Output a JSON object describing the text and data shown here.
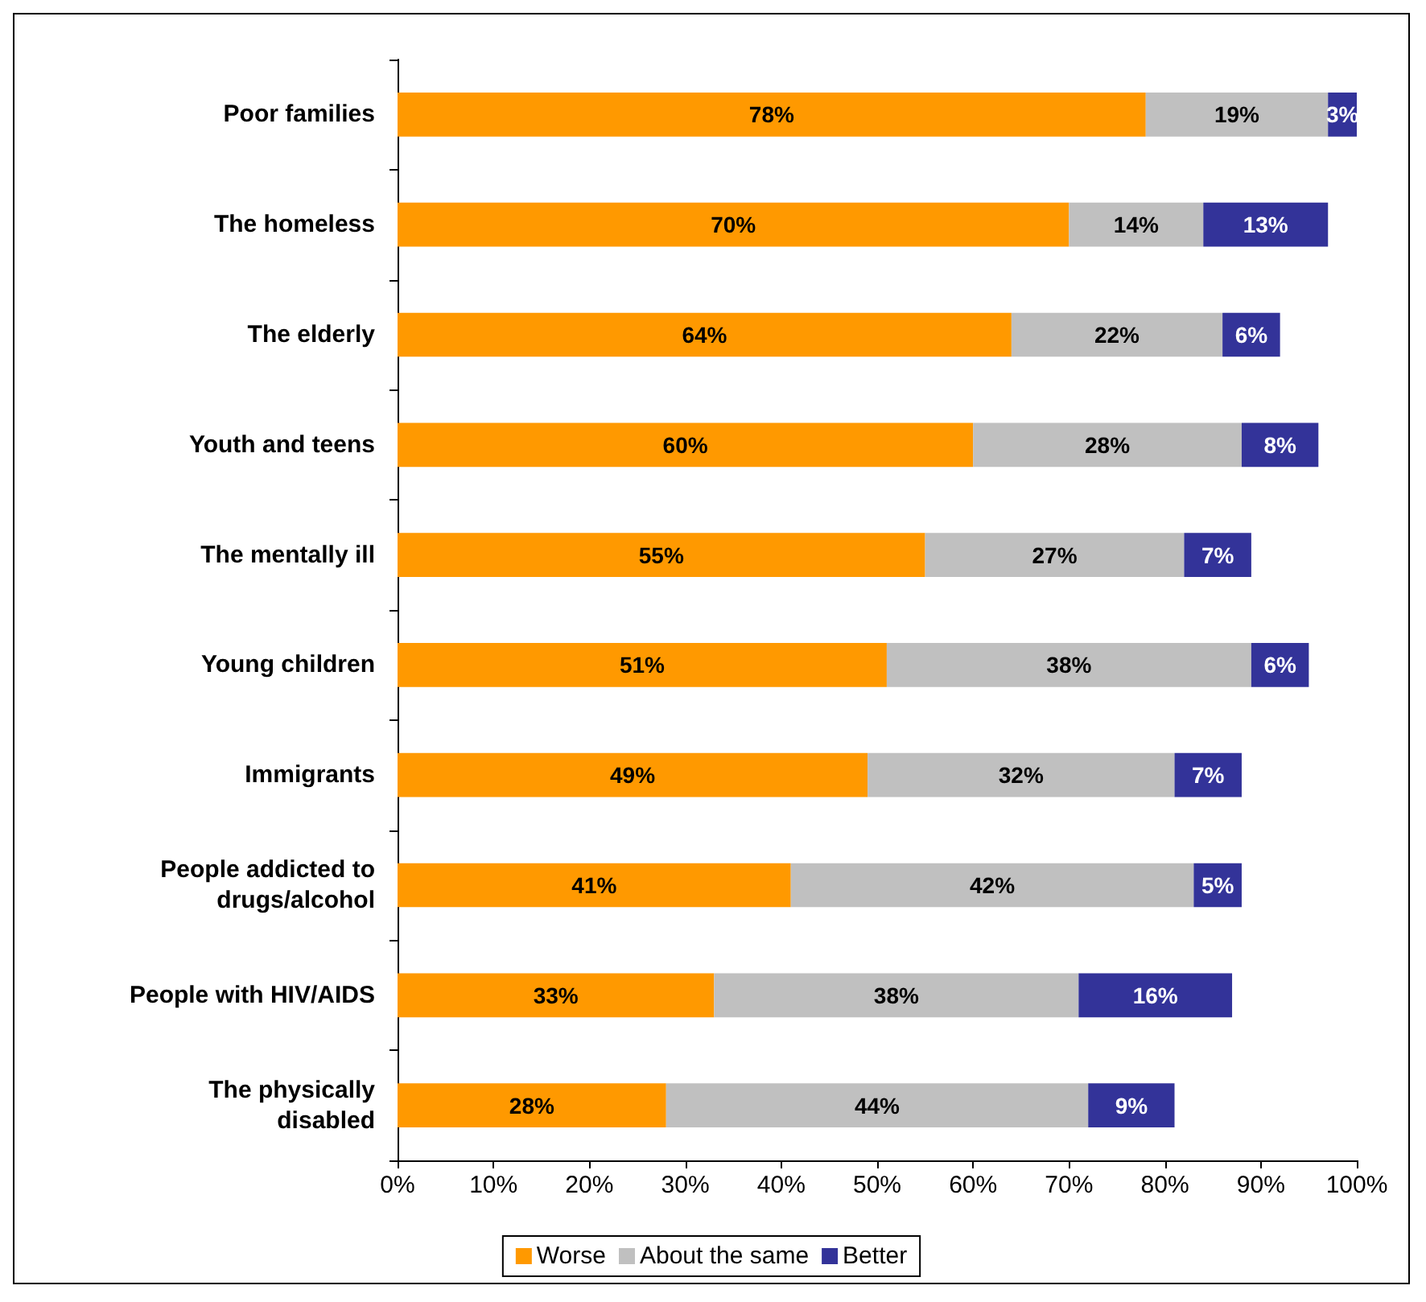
{
  "chart_data": {
    "type": "bar",
    "orientation": "horizontal",
    "stacked": true,
    "grid": false,
    "legend": "bottom",
    "categories": [
      "Poor families",
      "The homeless",
      "The elderly",
      "Youth and teens",
      "The mentally ill",
      "Young children",
      "Immigrants",
      "People addicted to\ndrugs/alcohol",
      "People with HIV/AIDS",
      "The physically\ndisabled"
    ],
    "series": [
      {
        "name": "Worse",
        "color": "#ff9900",
        "values": [
          78,
          70,
          64,
          60,
          55,
          51,
          49,
          41,
          33,
          28
        ],
        "value_labels": [
          "78%",
          "70%",
          "64%",
          "60%",
          "55%",
          "51%",
          "49%",
          "41%",
          "33%",
          "28%"
        ]
      },
      {
        "name": "About the same",
        "color": "#c0c0c0",
        "values": [
          19,
          14,
          22,
          28,
          27,
          38,
          32,
          42,
          38,
          44
        ],
        "value_labels": [
          "19%",
          "14%",
          "22%",
          "28%",
          "27%",
          "38%",
          "32%",
          "42%",
          "38%",
          "44%"
        ]
      },
      {
        "name": "Better",
        "color": "#333399",
        "values": [
          3,
          13,
          6,
          8,
          7,
          6,
          7,
          5,
          16,
          9
        ],
        "value_labels": [
          "3%",
          "13%",
          "6%",
          "8%",
          "7%",
          "6%",
          "7%",
          "5%",
          "16%",
          "9%"
        ]
      }
    ],
    "xlim": [
      0,
      100
    ],
    "xticks": [
      {
        "value": 0,
        "label": "0%"
      },
      {
        "value": 10,
        "label": "10%"
      },
      {
        "value": 20,
        "label": "20%"
      },
      {
        "value": 30,
        "label": "30%"
      },
      {
        "value": 40,
        "label": "40%"
      },
      {
        "value": 50,
        "label": "50%"
      },
      {
        "value": 60,
        "label": "60%"
      },
      {
        "value": 70,
        "label": "70%"
      },
      {
        "value": 80,
        "label": "80%"
      },
      {
        "value": 90,
        "label": "90%"
      },
      {
        "value": 100,
        "label": "100%"
      }
    ]
  }
}
